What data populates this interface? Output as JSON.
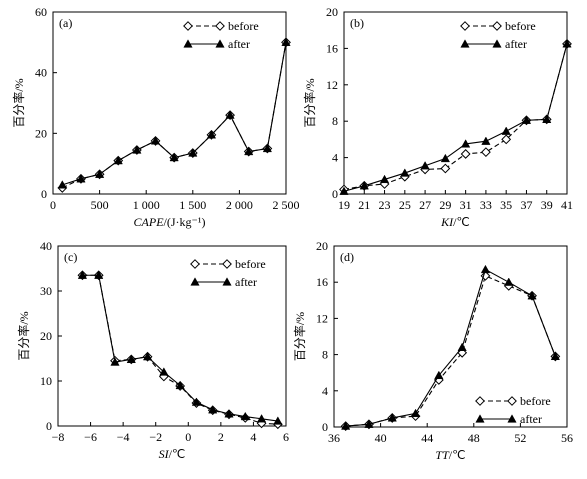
{
  "legend": {
    "before": "before",
    "after": "after"
  },
  "chart_data": [
    {
      "type": "line",
      "panel": "(a)",
      "xlabel_var": "CAPE",
      "xlabel_unit": "/(J·kg⁻¹)",
      "ylabel": "百分率/%",
      "xlim": [
        0,
        2500
      ],
      "ylim": [
        0,
        60
      ],
      "xticks": [
        0,
        500,
        1000,
        1500,
        2000,
        2500
      ],
      "xtick_labels": [
        "0",
        "500",
        "1 000",
        "1 500",
        "2 000",
        "2 500"
      ],
      "yticks": [
        0,
        20,
        40,
        60
      ],
      "legend_position": "top-center",
      "series": [
        {
          "name": "before",
          "x": [
            100,
            300,
            500,
            700,
            900,
            1100,
            1300,
            1500,
            1700,
            1900,
            2100,
            2300,
            2500
          ],
          "values": [
            2,
            5,
            6.5,
            11,
            14.5,
            17.5,
            12,
            13.5,
            19.5,
            26,
            14,
            15,
            50
          ]
        },
        {
          "name": "after",
          "x": [
            100,
            300,
            500,
            700,
            900,
            1100,
            1300,
            1500,
            1700,
            1900,
            2100,
            2300,
            2500
          ],
          "values": [
            3,
            5,
            6.5,
            11,
            14.5,
            17.5,
            12,
            13.5,
            19.5,
            26,
            14,
            15,
            50
          ]
        }
      ]
    },
    {
      "type": "line",
      "panel": "(b)",
      "xlabel_var": "KI",
      "xlabel_unit": "/℃",
      "ylabel": "百分率/%",
      "xlim": [
        19,
        41
      ],
      "ylim": [
        0,
        20
      ],
      "xticks": [
        19,
        21,
        23,
        25,
        27,
        29,
        31,
        33,
        35,
        37,
        39,
        41
      ],
      "xtick_labels": [
        "19",
        "21",
        "23",
        "25",
        "27",
        "29",
        "31",
        "33",
        "35",
        "37",
        "39",
        "41"
      ],
      "yticks": [
        0,
        4,
        8,
        12,
        16,
        20
      ],
      "legend_position": "top-center",
      "series": [
        {
          "name": "before",
          "x": [
            19,
            21,
            23,
            25,
            27,
            29,
            31,
            33,
            35,
            37,
            39,
            41
          ],
          "values": [
            0.5,
            0.9,
            1.1,
            1.9,
            2.7,
            2.8,
            4.4,
            4.6,
            6.0,
            8.1,
            8.2,
            16.5
          ]
        },
        {
          "name": "after",
          "x": [
            19,
            21,
            23,
            25,
            27,
            29,
            31,
            33,
            35,
            37,
            39,
            41
          ],
          "values": [
            0.3,
            0.9,
            1.6,
            2.3,
            3.1,
            3.9,
            5.5,
            5.8,
            6.9,
            8.1,
            8.2,
            16.5
          ]
        }
      ]
    },
    {
      "type": "line",
      "panel": "(c)",
      "xlabel_var": "SI",
      "xlabel_unit": "/℃",
      "ylabel": "百分率/%",
      "xlim": [
        -8,
        6
      ],
      "ylim": [
        0,
        40
      ],
      "xticks": [
        -8,
        -6,
        -4,
        -2,
        0,
        2,
        4,
        6
      ],
      "xtick_labels": [
        "−8",
        "−6",
        "−4",
        "−2",
        "0",
        "2",
        "4",
        "6"
      ],
      "yticks": [
        0,
        10,
        20,
        30,
        40
      ],
      "legend_position": "top-right",
      "series": [
        {
          "name": "before",
          "x": [
            -6.5,
            -5.5,
            -4.5,
            -3.5,
            -2.5,
            -1.5,
            -0.5,
            0.5,
            1.5,
            2.5,
            3.5,
            4.5,
            5.5
          ],
          "values": [
            33.5,
            33.5,
            14.5,
            14.8,
            15.4,
            11,
            8.9,
            5.1,
            3.5,
            2.6,
            1.8,
            0.6,
            0.4
          ]
        },
        {
          "name": "after",
          "x": [
            -6.5,
            -5.5,
            -4.5,
            -3.5,
            -2.5,
            -1.5,
            -0.5,
            0.5,
            1.5,
            2.5,
            3.5,
            4.5,
            5.5
          ],
          "values": [
            33.5,
            33.5,
            14.2,
            14.8,
            15.4,
            12,
            9.0,
            5.3,
            3.6,
            2.7,
            2.1,
            1.6,
            1.1
          ]
        }
      ]
    },
    {
      "type": "line",
      "panel": "(d)",
      "xlabel_var": "TT",
      "xlabel_unit": "/℃",
      "ylabel": "百分率/%",
      "xlim": [
        36,
        56
      ],
      "ylim": [
        0,
        20
      ],
      "xticks": [
        36,
        40,
        44,
        48,
        52,
        56
      ],
      "xtick_labels": [
        "36",
        "40",
        "44",
        "48",
        "52",
        "56"
      ],
      "yticks": [
        0,
        4,
        8,
        12,
        16,
        20
      ],
      "legend_position": "bottom-right",
      "series": [
        {
          "name": "before",
          "x": [
            37,
            39,
            41,
            43,
            45,
            47,
            49,
            51,
            53,
            55
          ],
          "values": [
            0.1,
            0.3,
            1.0,
            1.2,
            5.2,
            8.2,
            16.7,
            15.6,
            14.5,
            7.8
          ]
        },
        {
          "name": "after",
          "x": [
            37,
            39,
            41,
            43,
            45,
            47,
            49,
            51,
            53,
            55
          ],
          "values": [
            0.1,
            0.3,
            1.0,
            1.5,
            5.7,
            8.8,
            17.4,
            16.0,
            14.5,
            7.8
          ]
        }
      ]
    }
  ]
}
